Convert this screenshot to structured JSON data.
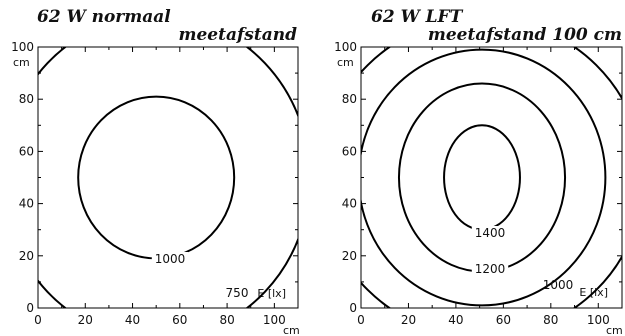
{
  "chart_data": [
    {
      "type": "contour",
      "title": "62 W normaal",
      "subtitle": "meetafstand",
      "x_unit": "cm",
      "y_unit": "cm",
      "xlim": [
        0,
        110
      ],
      "ylim": [
        0,
        100
      ],
      "x_ticks": [
        "0",
        "20",
        "40",
        "60",
        "80",
        "100"
      ],
      "y_ticks": [
        "0",
        "20",
        "40",
        "60",
        "80",
        "100"
      ],
      "quantity_label": "E [lx]",
      "contours": [
        {
          "level": "1000",
          "cx": 50,
          "cy": 50,
          "rx": 33,
          "ry": 31
        },
        {
          "level": "750",
          "cx": 50,
          "cy": 50,
          "rx": 65,
          "ry": 62
        }
      ]
    },
    {
      "type": "contour",
      "title": "62 W LFT",
      "subtitle": "meetafstand 100 cm",
      "x_unit": "cm",
      "y_unit": "cm",
      "xlim": [
        0,
        110
      ],
      "ylim": [
        0,
        100
      ],
      "x_ticks": [
        "0",
        "20",
        "40",
        "60",
        "80",
        "100"
      ],
      "y_ticks": [
        "0",
        "20",
        "40",
        "60",
        "80",
        "100"
      ],
      "quantity_label": "E [lx]",
      "contours": [
        {
          "level": "1400",
          "cx": 51,
          "cy": 50,
          "rx": 16,
          "ry": 20
        },
        {
          "level": "1200",
          "cx": 51,
          "cy": 50,
          "rx": 35,
          "ry": 36
        },
        {
          "level": "1000",
          "cx": 51,
          "cy": 50,
          "rx": 52,
          "ry": 49
        },
        {
          "level": "",
          "cx": 51,
          "cy": 50,
          "rx": 68,
          "ry": 61
        }
      ]
    }
  ]
}
